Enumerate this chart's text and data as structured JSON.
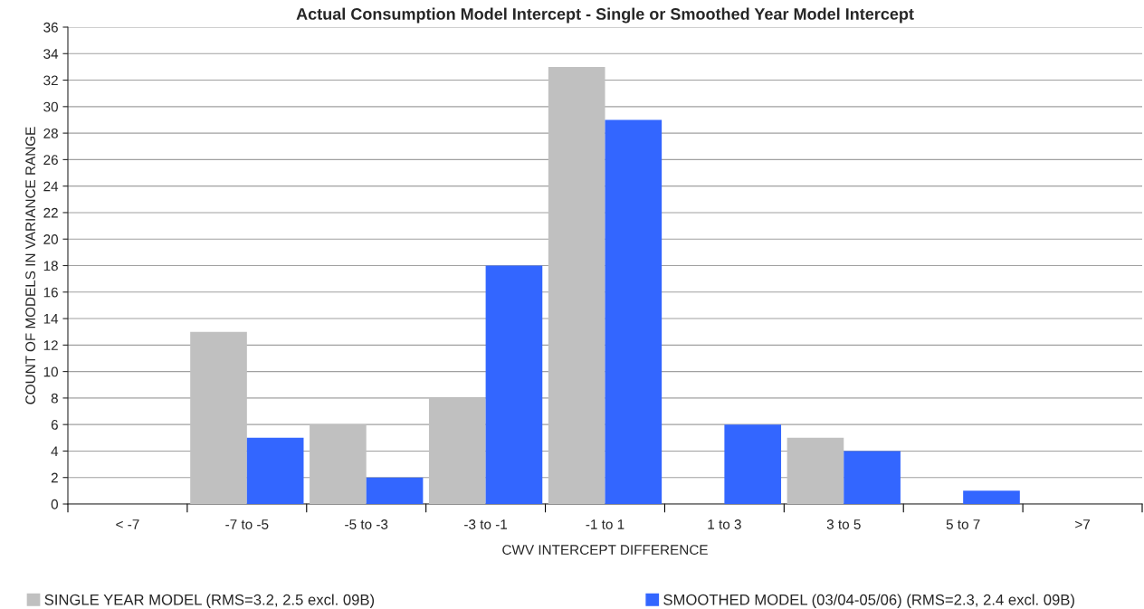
{
  "chart_data": {
    "type": "bar",
    "title": "Actual Consumption Model Intercept - Single or Smoothed Year Model Intercept",
    "xlabel": "CWV INTERCEPT DIFFERENCE",
    "ylabel": "COUNT OF MODELS IN VARIANCE RANGE",
    "categories": [
      "< -7",
      "-7 to -5",
      "-5 to -3",
      "-3 to -1",
      "-1 to 1",
      "1 to 3",
      "3 to 5",
      "5 to 7",
      ">7"
    ],
    "series": [
      {
        "name": "SINGLE YEAR MODEL (RMS=3.2, 2.5 excl. 09B)",
        "color": "#c0c0c0",
        "values": [
          0,
          13,
          6,
          8,
          33,
          0,
          5,
          0,
          0
        ]
      },
      {
        "name": "SMOOTHED MODEL (03/04-05/06) (RMS=2.3, 2.4 excl. 09B)",
        "color": "#3366ff",
        "values": [
          0,
          5,
          2,
          18,
          29,
          6,
          4,
          1,
          0
        ]
      }
    ],
    "ylim": [
      0,
      36
    ],
    "yticks": [
      0,
      2,
      4,
      6,
      8,
      10,
      12,
      14,
      16,
      18,
      20,
      22,
      24,
      26,
      28,
      30,
      32,
      34,
      36
    ],
    "grid": "y",
    "legend": "bottom"
  }
}
